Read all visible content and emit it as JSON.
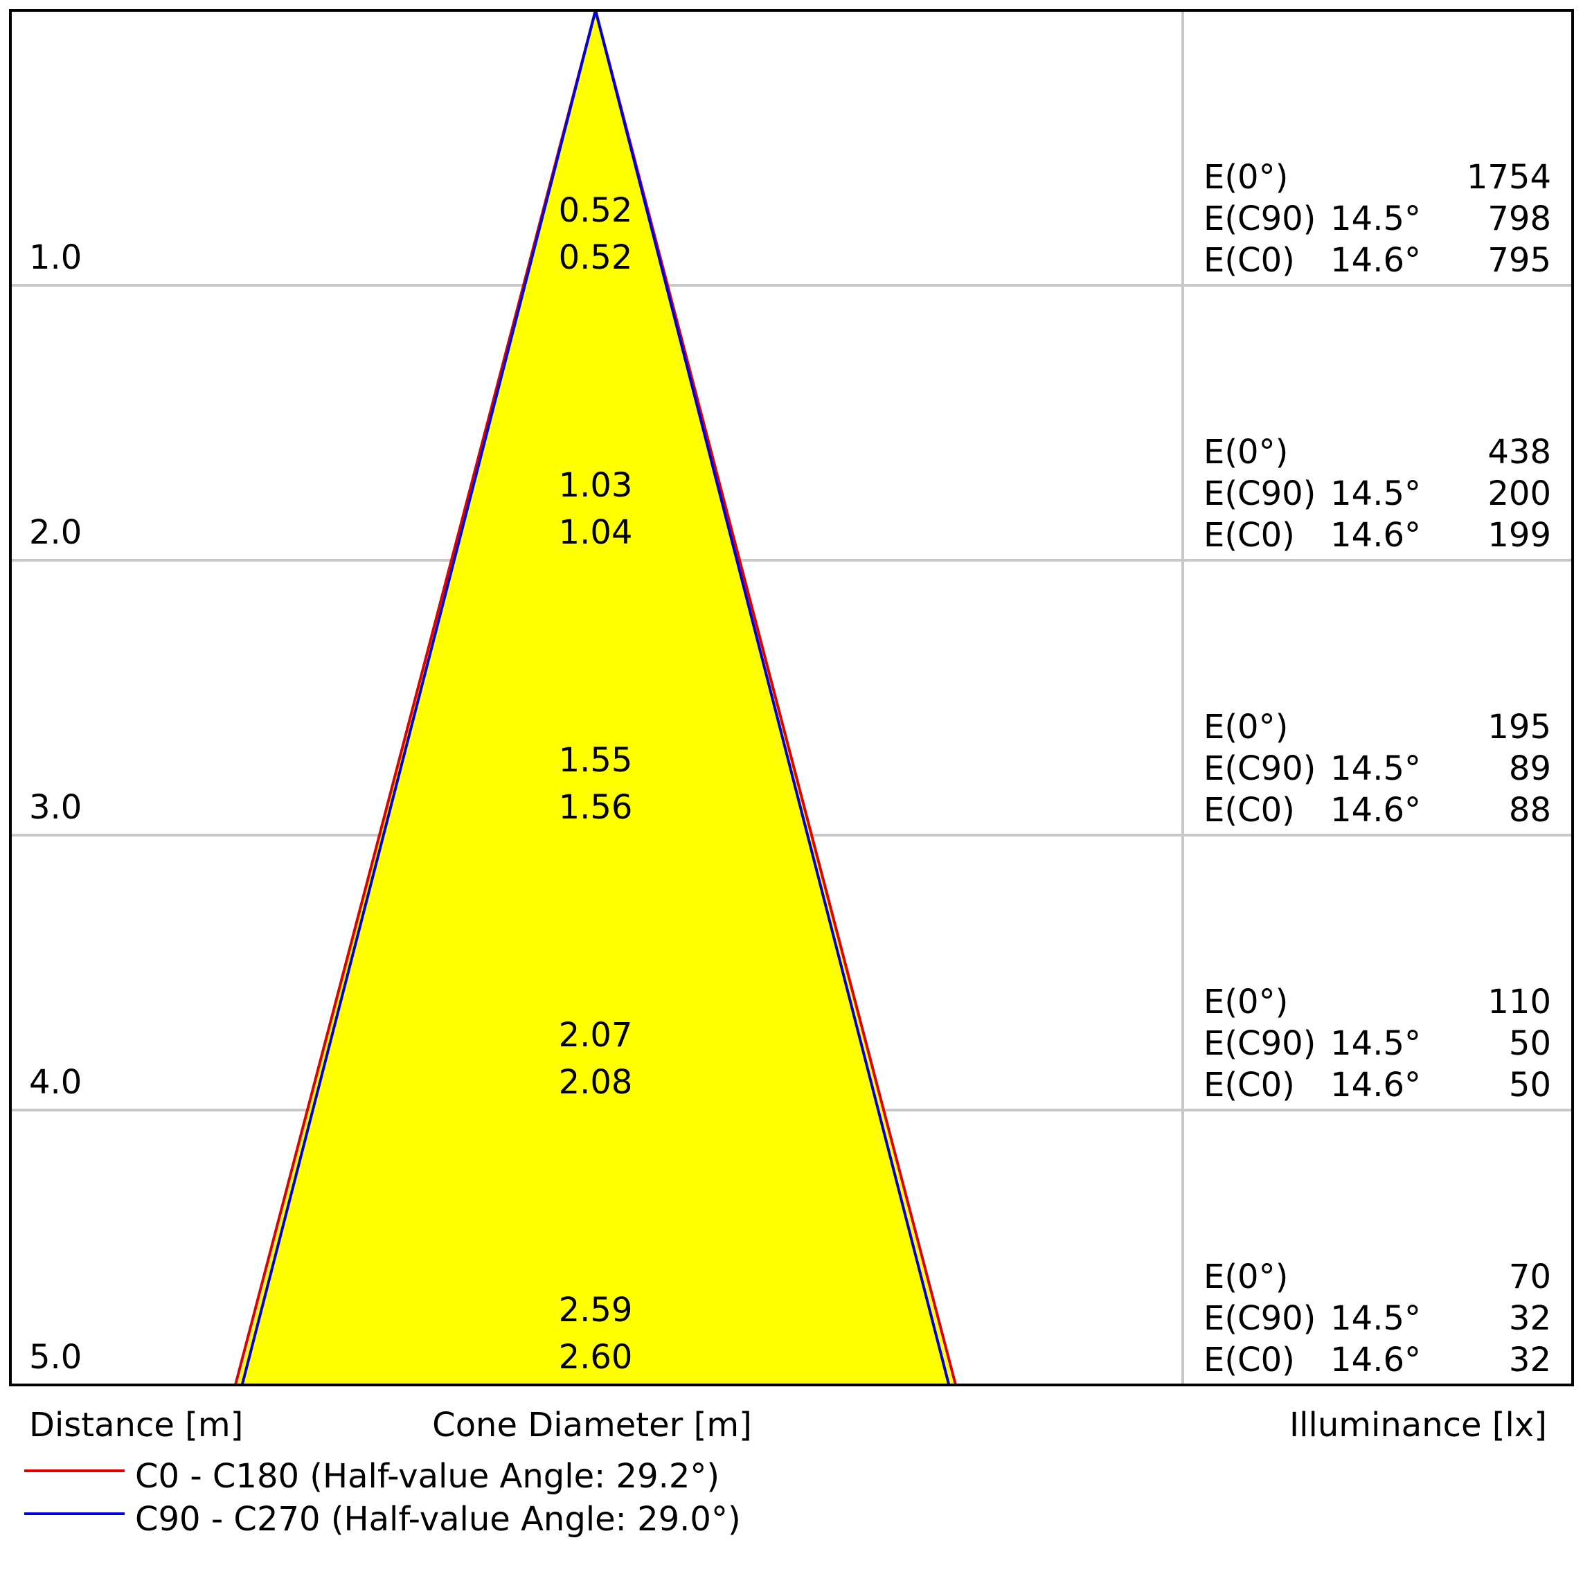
{
  "chart_data": {
    "type": "cone-diagram",
    "axis_labels": {
      "distance": "Distance [m]",
      "cone_diameter": "Cone Diameter [m]",
      "illuminance": "Illuminance [lx]"
    },
    "distances": [
      "1.0",
      "2.0",
      "3.0",
      "4.0",
      "5.0"
    ],
    "distance_values": [
      1.0,
      2.0,
      3.0,
      4.0,
      5.0
    ],
    "cone_diameters": [
      [
        "0.52",
        "0.52"
      ],
      [
        "1.03",
        "1.04"
      ],
      [
        "1.55",
        "1.56"
      ],
      [
        "2.07",
        "2.08"
      ],
      [
        "2.59",
        "2.60"
      ]
    ],
    "illuminance": [
      {
        "e0": "1754",
        "ec90": "798",
        "ec0": "795"
      },
      {
        "e0": "438",
        "ec90": "200",
        "ec0": "199"
      },
      {
        "e0": "195",
        "ec90": "89",
        "ec0": "88"
      },
      {
        "e0": "110",
        "ec90": "50",
        "ec0": "50"
      },
      {
        "e0": "70",
        "ec90": "32",
        "ec0": "32"
      }
    ],
    "row_labels": {
      "e0": "E(0°)",
      "ec90": "E(C90)",
      "ec0": "E(C0)"
    },
    "angle_labels": {
      "ec90": "14.5°",
      "ec0": "14.6°"
    },
    "series": [
      {
        "name": "C0 - C180 (Half-value Angle: 29.2°)",
        "half_angle": 29.2,
        "color": "#e00000"
      },
      {
        "name": "C90 - C270 (Half-value Angle: 29.0°)",
        "half_angle": 29.0,
        "color": "#0000e0"
      }
    ],
    "cone_fill": "#ffff00",
    "grid_color": "#c8c8c8",
    "grid": true
  }
}
